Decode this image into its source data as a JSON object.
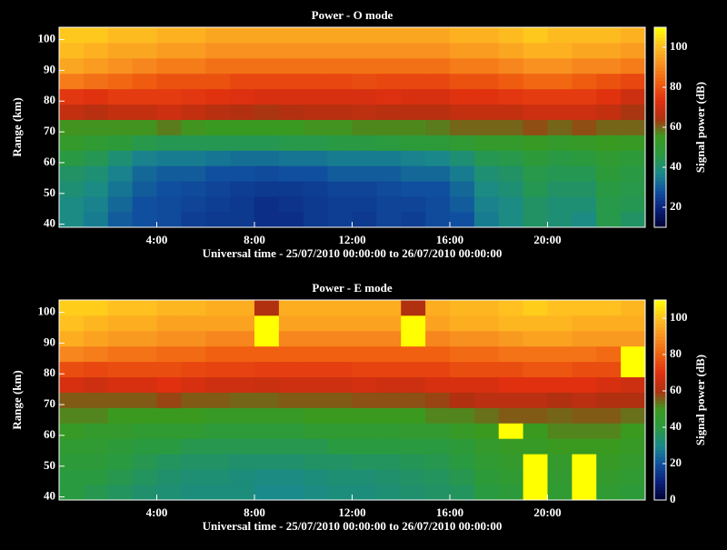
{
  "chart_data": [
    {
      "type": "heatmap",
      "title": "Power - O mode",
      "xlabel": "Universal time - 25/07/2010 00:00:00 to 26/07/2010 00:00:00",
      "ylabel": "Range (km)",
      "colorbar_label": "Signal power (dB)",
      "xlim": [
        0,
        24
      ],
      "xticks": [
        {
          "value": 4,
          "label": "4:00"
        },
        {
          "value": 8,
          "label": "8:00"
        },
        {
          "value": 12,
          "label": "12:00"
        },
        {
          "value": 16,
          "label": "16:00"
        },
        {
          "value": 20,
          "label": "20:00"
        }
      ],
      "ylim": [
        39,
        104
      ],
      "yticks": [
        40,
        50,
        60,
        70,
        80,
        90,
        100
      ],
      "clim": [
        10,
        110
      ],
      "cticks": [
        20,
        40,
        60,
        80,
        100
      ],
      "colormap": [
        "#000030",
        "#0a1e7a",
        "#1050a0",
        "#1a8a8a",
        "#2a9a40",
        "#3a9a20",
        "#b03010",
        "#e03010",
        "#f06010",
        "#f89020",
        "#ffc020",
        "#ffff00"
      ],
      "xbins": [
        0,
        1,
        2,
        3,
        4,
        5,
        6,
        7,
        8,
        9,
        10,
        11,
        12,
        13,
        14,
        15,
        16,
        17,
        18,
        19,
        20,
        21,
        22,
        23,
        24
      ],
      "ybins": [
        39,
        44,
        49,
        54,
        59,
        64,
        69,
        74,
        79,
        84,
        89,
        94,
        99,
        104
      ],
      "values": [
        [
          38,
          35,
          30,
          28,
          27,
          25,
          24,
          24,
          22,
          22,
          24,
          25,
          24,
          26,
          25,
          27,
          28,
          35,
          38,
          42,
          40,
          38,
          45,
          42
        ],
        [
          38,
          36,
          32,
          28,
          27,
          26,
          25,
          24,
          22,
          23,
          24,
          25,
          25,
          26,
          26,
          27,
          30,
          36,
          38,
          42,
          40,
          40,
          45,
          44
        ],
        [
          40,
          38,
          34,
          30,
          28,
          27,
          26,
          25,
          24,
          24,
          25,
          26,
          26,
          27,
          28,
          28,
          32,
          38,
          40,
          44,
          42,
          42,
          46,
          45
        ],
        [
          42,
          40,
          36,
          32,
          30,
          30,
          28,
          28,
          27,
          28,
          28,
          30,
          30,
          30,
          32,
          32,
          35,
          40,
          42,
          45,
          44,
          44,
          48,
          46
        ],
        [
          46,
          44,
          40,
          36,
          35,
          35,
          34,
          33,
          33,
          34,
          34,
          35,
          35,
          35,
          36,
          37,
          40,
          44,
          45,
          48,
          46,
          47,
          50,
          48
        ],
        [
          52,
          50,
          48,
          45,
          44,
          44,
          44,
          44,
          44,
          45,
          45,
          46,
          46,
          47,
          48,
          48,
          50,
          52,
          52,
          54,
          52,
          53,
          55,
          54
        ],
        [
          56,
          56,
          56,
          56,
          58,
          56,
          55,
          55,
          55,
          55,
          56,
          56,
          57,
          57,
          57,
          58,
          60,
          60,
          60,
          62,
          60,
          62,
          60,
          60
        ],
        [
          68,
          66,
          68,
          68,
          70,
          68,
          66,
          65,
          64,
          65,
          66,
          66,
          67,
          66,
          66,
          66,
          68,
          68,
          68,
          70,
          70,
          70,
          68,
          64
        ],
        [
          75,
          74,
          76,
          76,
          76,
          75,
          74,
          73,
          72,
          72,
          72,
          72,
          72,
          73,
          72,
          72,
          74,
          74,
          75,
          76,
          76,
          76,
          74,
          70
        ],
        [
          88,
          86,
          84,
          82,
          80,
          80,
          80,
          78,
          78,
          78,
          78,
          78,
          79,
          78,
          78,
          78,
          80,
          80,
          82,
          84,
          84,
          82,
          80,
          78
        ],
        [
          96,
          94,
          92,
          90,
          88,
          88,
          86,
          86,
          86,
          86,
          86,
          86,
          86,
          86,
          86,
          86,
          88,
          88,
          90,
          92,
          92,
          90,
          90,
          88
        ],
        [
          100,
          98,
          96,
          96,
          94,
          94,
          92,
          92,
          92,
          92,
          92,
          92,
          92,
          92,
          92,
          92,
          94,
          94,
          96,
          98,
          98,
          96,
          96,
          94
        ],
        [
          102,
          102,
          100,
          100,
          98,
          98,
          96,
          96,
          96,
          96,
          96,
          96,
          96,
          96,
          96,
          96,
          98,
          98,
          100,
          102,
          100,
          100,
          100,
          98
        ]
      ]
    },
    {
      "type": "heatmap",
      "title": "Power - E mode",
      "xlabel": "Universal time - 25/07/2010 00:00:00 to 26/07/2010 00:00:00",
      "ylabel": "Range (km)",
      "colorbar_label": "Signal power (dB)",
      "xlim": [
        0,
        24
      ],
      "xticks": [
        {
          "value": 4,
          "label": "4:00"
        },
        {
          "value": 8,
          "label": "8:00"
        },
        {
          "value": 12,
          "label": "12:00"
        },
        {
          "value": 16,
          "label": "16:00"
        },
        {
          "value": 20,
          "label": "20:00"
        }
      ],
      "ylim": [
        39,
        104
      ],
      "yticks": [
        40,
        50,
        60,
        70,
        80,
        90,
        100
      ],
      "clim": [
        0,
        110
      ],
      "cticks": [
        0,
        20,
        40,
        60,
        80,
        100
      ],
      "colormap": [
        "#000030",
        "#0a1e7a",
        "#1050a0",
        "#1a8a8a",
        "#2a9a40",
        "#3a9a20",
        "#b03010",
        "#e03010",
        "#f06010",
        "#f89020",
        "#ffc020",
        "#ffff00"
      ],
      "xbins": [
        0,
        1,
        2,
        3,
        4,
        5,
        6,
        7,
        8,
        9,
        10,
        11,
        12,
        13,
        14,
        15,
        16,
        17,
        18,
        19,
        20,
        21,
        22,
        23,
        24
      ],
      "ybins": [
        39,
        44,
        49,
        54,
        59,
        64,
        69,
        74,
        79,
        84,
        89,
        94,
        99,
        104
      ],
      "values": [
        [
          40,
          38,
          36,
          34,
          33,
          32,
          32,
          32,
          30,
          30,
          31,
          32,
          32,
          33,
          34,
          35,
          36,
          40,
          42,
          110,
          44,
          110,
          44,
          42
        ],
        [
          40,
          40,
          38,
          36,
          34,
          33,
          33,
          32,
          31,
          31,
          32,
          33,
          33,
          34,
          35,
          36,
          38,
          42,
          44,
          110,
          45,
          110,
          46,
          44
        ],
        [
          42,
          42,
          40,
          38,
          36,
          35,
          35,
          34,
          34,
          34,
          35,
          35,
          36,
          36,
          37,
          38,
          40,
          44,
          46,
          110,
          46,
          110,
          48,
          46
        ],
        [
          44,
          44,
          42,
          40,
          40,
          38,
          38,
          38,
          38,
          38,
          38,
          40,
          40,
          40,
          40,
          40,
          42,
          46,
          48,
          48,
          50,
          50,
          50,
          48
        ],
        [
          48,
          46,
          46,
          44,
          44,
          44,
          42,
          42,
          42,
          42,
          44,
          44,
          44,
          44,
          45,
          45,
          48,
          50,
          110,
          50,
          52,
          52,
          52,
          50
        ],
        [
          52,
          52,
          50,
          50,
          50,
          50,
          48,
          48,
          48,
          48,
          50,
          50,
          50,
          50,
          50,
          52,
          52,
          54,
          56,
          56,
          55,
          56,
          56,
          54
        ],
        [
          56,
          56,
          56,
          56,
          58,
          56,
          56,
          55,
          55,
          56,
          56,
          56,
          57,
          57,
          57,
          58,
          60,
          62,
          62,
          62,
          60,
          62,
          60,
          60
        ],
        [
          68,
          66,
          68,
          68,
          70,
          68,
          66,
          66,
          65,
          66,
          66,
          66,
          67,
          66,
          66,
          68,
          68,
          68,
          70,
          70,
          70,
          70,
          68,
          66
        ],
        [
          76,
          75,
          76,
          76,
          76,
          75,
          74,
          74,
          73,
          73,
          73,
          73,
          74,
          74,
          74,
          74,
          76,
          76,
          76,
          78,
          78,
          76,
          76,
          110
        ],
        [
          88,
          86,
          84,
          84,
          82,
          82,
          80,
          80,
          80,
          80,
          80,
          80,
          80,
          80,
          80,
          80,
          82,
          82,
          84,
          84,
          84,
          84,
          82,
          110
        ],
        [
          96,
          94,
          92,
          92,
          90,
          90,
          88,
          88,
          110,
          88,
          88,
          88,
          88,
          88,
          110,
          88,
          90,
          90,
          92,
          94,
          94,
          92,
          92,
          92
        ],
        [
          100,
          98,
          96,
          96,
          94,
          94,
          94,
          94,
          110,
          94,
          94,
          94,
          94,
          94,
          110,
          94,
          96,
          96,
          98,
          98,
          98,
          96,
          96,
          96
        ],
        [
          102,
          102,
          100,
          100,
          98,
          98,
          96,
          96,
          60,
          96,
          96,
          96,
          96,
          96,
          60,
          96,
          98,
          98,
          100,
          102,
          100,
          100,
          100,
          98
        ]
      ]
    }
  ]
}
